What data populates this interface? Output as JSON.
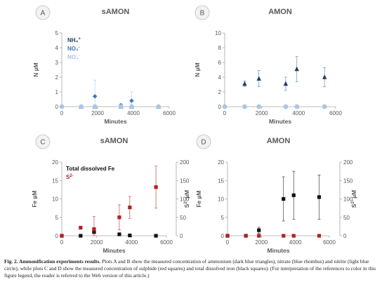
{
  "caption": {
    "lead": "Fig. 2. Ammonification experiments results.",
    "text": " Plots A and B show the measured concentration of ammonium (dark blue triangles), nitrate (blue rhombus) and nitrite (light blue circle), while plots C and D show the measured concentration of sulphide (red squares) and total dissolved iron (black squares). (For interpretation of the references to color in this figure legend, the reader is referred to the Web version of this article.)"
  },
  "colors": {
    "ammonium": "#1f3c66",
    "nitrate": "#3f75b6",
    "nitrite": "#a9c6e6",
    "sulphide": "#b32121",
    "iron": "#111111",
    "axis": "#a6a6a6",
    "label": "#595959"
  },
  "chart_data": [
    {
      "panel": "A",
      "type": "scatter",
      "title": "sAMON",
      "xlabel": "Minutes",
      "ylabel": "N µM",
      "xlim": [
        0,
        6000
      ],
      "ylim": [
        0,
        5
      ],
      "xticks": [
        "0",
        "2000",
        "4000",
        "6000"
      ],
      "yticks": [
        "0",
        "1",
        "2",
        "3",
        "4",
        "5"
      ],
      "legend": [
        "NH₄⁺",
        "NO₃⁻",
        "NO₂⁻"
      ],
      "series": [
        {
          "name": "NH₄⁺",
          "marker": "triangle",
          "color": "#1f3c66",
          "points": [
            {
              "x": 1080,
              "y": 0.0
            },
            {
              "x": 1850,
              "y": 0.0
            },
            {
              "x": 3300,
              "y": 0.0
            },
            {
              "x": 3900,
              "y": 0.0
            },
            {
              "x": 5400,
              "y": 0.0
            }
          ]
        },
        {
          "name": "NO₃⁻",
          "marker": "diamond",
          "color": "#3f75b6",
          "points": [
            {
              "x": 1850,
              "y": 0.7,
              "err": 1.1
            },
            {
              "x": 3300,
              "y": 0.1,
              "err": 0.1
            },
            {
              "x": 3900,
              "y": 0.4,
              "err": 0.6
            }
          ]
        },
        {
          "name": "NO₂⁻",
          "marker": "circle",
          "color": "#a9c6e6",
          "points": [
            {
              "x": 0,
              "y": 0
            },
            {
              "x": 1080,
              "y": 0
            },
            {
              "x": 1850,
              "y": 0
            },
            {
              "x": 3300,
              "y": 0
            },
            {
              "x": 3900,
              "y": 0
            },
            {
              "x": 5400,
              "y": 0
            }
          ]
        }
      ]
    },
    {
      "panel": "B",
      "type": "scatter",
      "title": "AMON",
      "xlabel": "Minutes",
      "ylabel": "N µM",
      "xlim": [
        0,
        6000
      ],
      "ylim": [
        0,
        10
      ],
      "xticks": [
        "0",
        "2000",
        "4000",
        "6000"
      ],
      "yticks": [
        "0",
        "2",
        "4",
        "6",
        "8",
        "10"
      ],
      "series": [
        {
          "name": "NH₄⁺",
          "marker": "triangle",
          "color": "#1f3c66",
          "points": [
            {
              "x": 1080,
              "y": 3.1,
              "err": 0.4
            },
            {
              "x": 1850,
              "y": 3.8,
              "err": 1.1
            },
            {
              "x": 3300,
              "y": 3.1,
              "err": 0.9
            },
            {
              "x": 3900,
              "y": 5.1,
              "err": 1.7
            },
            {
              "x": 5400,
              "y": 4.0,
              "err": 1.3
            }
          ]
        },
        {
          "name": "NO₃⁻",
          "marker": "diamond",
          "color": "#3f75b6",
          "points": [
            {
              "x": 0,
              "y": 0
            },
            {
              "x": 1080,
              "y": 0
            },
            {
              "x": 1850,
              "y": 0
            },
            {
              "x": 3300,
              "y": 0
            },
            {
              "x": 3900,
              "y": 0
            },
            {
              "x": 5400,
              "y": 0
            }
          ]
        },
        {
          "name": "NO₂⁻",
          "marker": "circle",
          "color": "#a9c6e6",
          "points": [
            {
              "x": 0,
              "y": 0
            },
            {
              "x": 1080,
              "y": 0
            },
            {
              "x": 1850,
              "y": 0
            },
            {
              "x": 3300,
              "y": 0
            },
            {
              "x": 3900,
              "y": 0
            },
            {
              "x": 5400,
              "y": 0
            }
          ]
        }
      ]
    },
    {
      "panel": "C",
      "type": "scatter",
      "title": "sAMON",
      "xlabel": "Minutes",
      "ylabel": "Fe µM",
      "y2label": "S²⁻ µM",
      "xlim": [
        0,
        6000
      ],
      "ylim": [
        0,
        20
      ],
      "y2lim": [
        0,
        200
      ],
      "xticks": [
        "0",
        "2000",
        "4000",
        "6000"
      ],
      "yticks": [
        "0",
        "5",
        "10",
        "15",
        "20"
      ],
      "y2ticks": [
        "0",
        "50",
        "100",
        "150",
        "200"
      ],
      "legend": [
        "Total dissolved Fe",
        "S²⁻"
      ],
      "series": [
        {
          "name": "Total dissolved Fe",
          "marker": "square",
          "color": "#111111",
          "axis": "left",
          "points": [
            {
              "x": 0,
              "y": 0
            },
            {
              "x": 1080,
              "y": 0
            },
            {
              "x": 1850,
              "y": 1.0
            },
            {
              "x": 3300,
              "y": 0.4
            },
            {
              "x": 3900,
              "y": 0.1
            },
            {
              "x": 5400,
              "y": 0
            }
          ]
        },
        {
          "name": "S²⁻",
          "marker": "square",
          "color": "#b32121",
          "axis": "right",
          "points": [
            {
              "x": 0,
              "y": 0
            },
            {
              "x": 1080,
              "y": 22,
              "err": 4
            },
            {
              "x": 1850,
              "y": 18,
              "err": 34
            },
            {
              "x": 3300,
              "y": 50,
              "err": 34
            },
            {
              "x": 3900,
              "y": 77,
              "err": 30
            },
            {
              "x": 5400,
              "y": 132,
              "err": 57
            }
          ]
        }
      ]
    },
    {
      "panel": "D",
      "type": "scatter",
      "title": "AMON",
      "xlabel": "Minutes",
      "ylabel": "Fe µM",
      "y2label": "S²⁻ µM",
      "xlim": [
        0,
        6000
      ],
      "ylim": [
        0,
        20
      ],
      "y2lim": [
        0,
        200
      ],
      "xticks": [
        "0",
        "2000",
        "4000",
        "6000"
      ],
      "yticks": [
        "0",
        "5",
        "10",
        "15",
        "20"
      ],
      "y2ticks": [
        "0",
        "50",
        "100",
        "150",
        "200"
      ],
      "series": [
        {
          "name": "Total dissolved Fe",
          "marker": "square",
          "color": "#111111",
          "axis": "left",
          "points": [
            {
              "x": 0,
              "y": 0
            },
            {
              "x": 1080,
              "y": 0
            },
            {
              "x": 1850,
              "y": 1.5,
              "err": 0.8
            },
            {
              "x": 3300,
              "y": 10.0,
              "err": 6.0
            },
            {
              "x": 3900,
              "y": 11.0,
              "err": 6.5
            },
            {
              "x": 5400,
              "y": 10.5,
              "err": 6.0
            }
          ]
        },
        {
          "name": "S²⁻",
          "marker": "square",
          "color": "#b32121",
          "axis": "right",
          "points": [
            {
              "x": 0,
              "y": 0
            },
            {
              "x": 1080,
              "y": 0
            },
            {
              "x": 1850,
              "y": 0
            },
            {
              "x": 3300,
              "y": 0
            },
            {
              "x": 3900,
              "y": 0
            },
            {
              "x": 5400,
              "y": 0
            }
          ]
        }
      ]
    }
  ]
}
